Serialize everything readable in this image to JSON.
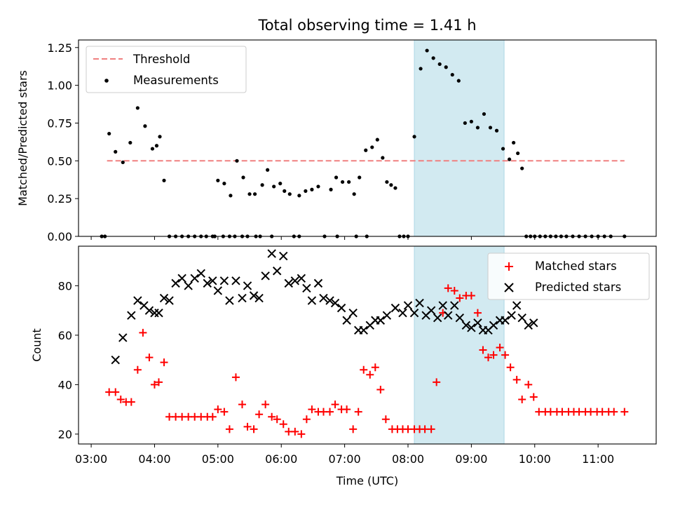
{
  "chart_data": [
    {
      "type": "scatter",
      "title": "Total observing time = 1.41 h",
      "xlabel": "",
      "ylabel": "Matched/Predicted stars",
      "ylim": [
        0,
        1.3
      ],
      "yticks": [
        0.0,
        0.25,
        0.5,
        0.75,
        1.0,
        1.25
      ],
      "ytick_labels": [
        "0.00",
        "0.25",
        "0.50",
        "0.75",
        "1.00",
        "1.25"
      ],
      "xlim": [
        "02:48",
        "11:55"
      ],
      "legend": {
        "placement": "top-left",
        "entries": [
          "Threshold",
          "Measurements"
        ]
      },
      "threshold": {
        "name": "Threshold",
        "y": 0.5,
        "x_start": "03:15",
        "x_end": "11:25",
        "color": "#f08080",
        "style": "dashed"
      },
      "highlight_span": {
        "x_start": "08:06",
        "x_end": "09:31",
        "color": "#add8e6"
      },
      "series": [
        {
          "name": "Measurements",
          "color": "#000000",
          "x": [
            "03:10",
            "03:13",
            "03:17",
            "03:23",
            "03:30",
            "03:37",
            "03:44",
            "03:51",
            "03:58",
            "04:02",
            "04:05",
            "04:09",
            "04:14",
            "04:20",
            "04:26",
            "04:32",
            "04:38",
            "04:44",
            "04:49",
            "04:55",
            "05:00",
            "05:06",
            "05:12",
            "05:18",
            "05:24",
            "05:30",
            "05:35",
            "05:42",
            "05:47",
            "05:53",
            "05:59",
            "06:03",
            "06:08",
            "06:12",
            "06:17",
            "06:23",
            "06:29",
            "06:35",
            "06:41",
            "06:47",
            "06:52",
            "06:58",
            "07:04",
            "07:09",
            "07:14",
            "07:20",
            "07:26",
            "07:31",
            "07:36",
            "07:40",
            "07:44",
            "07:48",
            "07:52",
            "07:56",
            "08:00",
            "08:06",
            "08:12",
            "08:18",
            "08:24",
            "08:30",
            "08:36",
            "08:42",
            "08:48",
            "08:54",
            "09:00",
            "09:06",
            "09:12",
            "09:18",
            "09:24",
            "09:30",
            "09:36",
            "09:40",
            "09:44",
            "09:48",
            "09:52",
            "09:56",
            "10:00",
            "10:05",
            "10:10",
            "10:15",
            "10:20",
            "10:25",
            "10:30",
            "10:36",
            "10:42",
            "10:48",
            "10:54",
            "11:00",
            "11:06",
            "11:12",
            "11:25",
            "04:57",
            "05:05",
            "05:11",
            "05:16",
            "05:23",
            "05:28",
            "05:36",
            "05:40",
            "05:51",
            "06:17",
            "06:53",
            "07:11",
            "07:21"
          ],
          "y": [
            0.0,
            0.0,
            0.68,
            0.56,
            0.49,
            0.62,
            0.85,
            0.73,
            0.58,
            0.6,
            0.66,
            0.37,
            0.0,
            0.0,
            0.0,
            0.0,
            0.0,
            0.0,
            0.0,
            0.0,
            0.37,
            0.35,
            0.27,
            0.5,
            0.39,
            0.28,
            0.28,
            0.34,
            0.44,
            0.33,
            0.35,
            0.3,
            0.28,
            0.0,
            0.27,
            0.3,
            0.31,
            0.33,
            0.0,
            0.31,
            0.39,
            0.36,
            0.36,
            0.28,
            0.39,
            0.57,
            0.59,
            0.64,
            0.52,
            0.36,
            0.34,
            0.32,
            0.0,
            0.0,
            0.0,
            0.66,
            1.11,
            1.23,
            1.18,
            1.14,
            1.12,
            1.07,
            1.03,
            0.75,
            0.76,
            0.72,
            0.81,
            0.72,
            0.7,
            0.58,
            0.51,
            0.62,
            0.55,
            0.45,
            0.0,
            0.0,
            0.0,
            0.0,
            0.0,
            0.0,
            0.0,
            0.0,
            0.0,
            0.0,
            0.0,
            0.0,
            0.0,
            0.0,
            0.0,
            0.0,
            0.0,
            0.0,
            0.0,
            0.0,
            0.0,
            0.0,
            0.0,
            0.0,
            0.0,
            0.0,
            0.0,
            0.0,
            0.0,
            0.0
          ]
        }
      ]
    },
    {
      "type": "scatter",
      "title": "",
      "xlabel": "Time (UTC)",
      "ylabel": "Count",
      "ylim": [
        16,
        96
      ],
      "yticks": [
        20,
        40,
        60,
        80
      ],
      "ytick_labels": [
        "20",
        "40",
        "60",
        "80"
      ],
      "xlim": [
        "02:48",
        "11:55"
      ],
      "xticks": [
        "03:00",
        "04:00",
        "05:00",
        "06:00",
        "07:00",
        "08:00",
        "09:00",
        "10:00",
        "11:00"
      ],
      "xtick_labels": [
        "03:00",
        "04:00",
        "05:00",
        "06:00",
        "07:00",
        "08:00",
        "09:00",
        "10:00",
        "11:00"
      ],
      "legend": {
        "placement": "top-right",
        "entries": [
          "Matched stars",
          "Predicted stars"
        ]
      },
      "highlight_span": {
        "x_start": "08:06",
        "x_end": "09:31",
        "color": "#add8e6"
      },
      "series": [
        {
          "name": "Matched stars",
          "color": "#ff0000",
          "marker": "plus",
          "x": [
            "03:17",
            "03:23",
            "03:28",
            "03:33",
            "03:38",
            "03:44",
            "03:49",
            "03:55",
            "04:00",
            "04:04",
            "04:09",
            "04:14",
            "04:20",
            "04:26",
            "04:32",
            "04:38",
            "04:44",
            "04:50",
            "04:55",
            "05:00",
            "05:06",
            "05:11",
            "05:17",
            "05:23",
            "05:28",
            "05:34",
            "05:39",
            "05:45",
            "05:51",
            "05:56",
            "06:02",
            "06:07",
            "06:13",
            "06:19",
            "06:24",
            "06:29",
            "06:35",
            "06:40",
            "06:46",
            "06:51",
            "06:57",
            "07:02",
            "07:08",
            "07:13",
            "07:18",
            "07:24",
            "07:29",
            "07:34",
            "07:39",
            "07:45",
            "07:50",
            "07:55",
            "08:00",
            "08:06",
            "08:11",
            "08:16",
            "08:22",
            "08:27",
            "08:33",
            "08:38",
            "08:44",
            "08:49",
            "08:55",
            "09:00",
            "09:06",
            "09:11",
            "09:16",
            "09:21",
            "09:27",
            "09:32",
            "09:37",
            "09:43",
            "09:48",
            "09:54",
            "09:59",
            "10:04",
            "10:10",
            "10:15",
            "10:21",
            "10:26",
            "10:32",
            "10:37",
            "10:42",
            "10:48",
            "10:53",
            "10:59",
            "11:04",
            "11:10",
            "11:15",
            "11:25"
          ],
          "y": [
            37,
            37,
            34,
            33,
            33,
            46,
            61,
            51,
            40,
            41,
            49,
            27,
            27,
            27,
            27,
            27,
            27,
            27,
            27,
            30,
            29,
            22,
            43,
            32,
            23,
            22,
            28,
            32,
            27,
            26,
            24,
            21,
            21,
            20,
            26,
            30,
            29,
            29,
            29,
            32,
            30,
            30,
            22,
            29,
            46,
            44,
            47,
            38,
            26,
            22,
            22,
            22,
            22,
            22,
            22,
            22,
            22,
            41,
            69,
            79,
            78,
            75,
            76,
            76,
            69,
            54,
            51,
            52,
            55,
            52,
            47,
            42,
            34,
            40,
            35,
            29,
            29,
            29,
            29,
            29,
            29,
            29,
            29,
            29,
            29,
            29,
            29,
            29,
            29,
            29
          ]
        },
        {
          "name": "Predicted stars",
          "color": "#000000",
          "marker": "x",
          "x": [
            "03:23",
            "03:30",
            "03:38",
            "03:44",
            "03:50",
            "03:55",
            "04:00",
            "04:04",
            "04:09",
            "04:14",
            "04:20",
            "04:26",
            "04:32",
            "04:38",
            "04:44",
            "04:50",
            "04:55",
            "05:00",
            "05:06",
            "05:11",
            "05:17",
            "05:23",
            "05:28",
            "05:34",
            "05:39",
            "05:45",
            "05:51",
            "05:56",
            "06:02",
            "06:07",
            "06:13",
            "06:19",
            "06:24",
            "06:29",
            "06:35",
            "06:40",
            "06:46",
            "06:51",
            "06:57",
            "07:02",
            "07:08",
            "07:13",
            "07:18",
            "07:24",
            "07:29",
            "07:34",
            "07:40",
            "07:48",
            "07:55",
            "08:00",
            "08:06",
            "08:11",
            "08:17",
            "08:22",
            "08:28",
            "08:33",
            "08:38",
            "08:44",
            "08:49",
            "08:55",
            "09:00",
            "09:06",
            "09:11",
            "09:16",
            "09:21",
            "09:27",
            "09:32",
            "09:38",
            "09:43",
            "09:48",
            "09:54",
            "09:59"
          ],
          "y": [
            50,
            59,
            68,
            74,
            72,
            70,
            69,
            69,
            75,
            74,
            81,
            83,
            80,
            83,
            85,
            81,
            82,
            78,
            82,
            74,
            82,
            75,
            80,
            76,
            75,
            84,
            93,
            86,
            92,
            81,
            82,
            83,
            79,
            74,
            81,
            75,
            74,
            73,
            71,
            66,
            69,
            62,
            62,
            64,
            66,
            66,
            68,
            71,
            69,
            72,
            69,
            73,
            68,
            70,
            67,
            72,
            68,
            72,
            67,
            64,
            63,
            65,
            62,
            62,
            64,
            66,
            66,
            68,
            72,
            67,
            64,
            65
          ]
        }
      ]
    }
  ]
}
